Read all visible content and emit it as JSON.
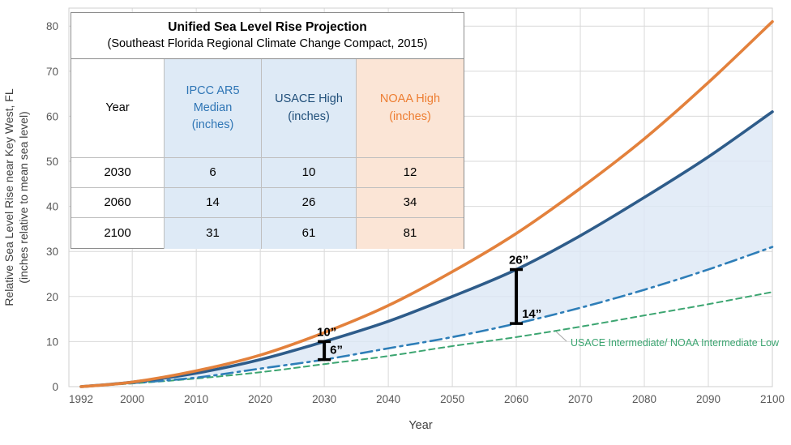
{
  "title_block": {
    "title": "Unified Sea Level Rise Projection",
    "subtitle": "(Southeast Florida Regional Climate Change Compact, 2015)"
  },
  "table": {
    "columns": [
      {
        "label": "Year",
        "color": "#000000",
        "bg": "#FFFFFF"
      },
      {
        "label": "IPCC AR5\nMedian\n(inches)",
        "color": "#2E75B5",
        "bg": "#DEEAF6"
      },
      {
        "label": "USACE High\n(inches)",
        "color": "#1F4E79",
        "bg": "#DEEAF6"
      },
      {
        "label": "NOAA High\n(inches)",
        "color": "#ED7D31",
        "bg": "#FBE5D6"
      }
    ],
    "rows": [
      {
        "year": "2030",
        "ipcc": "6",
        "usace": "10",
        "noaa": "12"
      },
      {
        "year": "2060",
        "ipcc": "14",
        "usace": "26",
        "noaa": "34"
      },
      {
        "year": "2100",
        "ipcc": "31",
        "usace": "61",
        "noaa": "81"
      }
    ]
  },
  "chart_data": {
    "type": "line",
    "x": [
      1992,
      2000,
      2010,
      2020,
      2030,
      2040,
      2050,
      2060,
      2070,
      2080,
      2090,
      2100
    ],
    "series": [
      {
        "name": "NOAA High",
        "color": "#E3813C",
        "style": "solid",
        "width": 3.6,
        "values": [
          0,
          1,
          3.5,
          7,
          12,
          18,
          25.5,
          34,
          44,
          55,
          67.5,
          81
        ]
      },
      {
        "name": "USACE High",
        "color": "#2E5C8A",
        "style": "solid",
        "width": 3.6,
        "values": [
          0,
          1,
          3,
          6,
          10,
          14.5,
          20,
          26,
          33.5,
          42,
          51,
          61
        ]
      },
      {
        "name": "IPCC AR5 Median",
        "color": "#2E7EB8",
        "style": "dashdot",
        "width": 2.6,
        "values": [
          0,
          0.8,
          2,
          4,
          6,
          8.5,
          11,
          14,
          17.5,
          21.5,
          26,
          31
        ]
      },
      {
        "name": "USACE Intermediate/ NOAA Intermediate Low",
        "color": "#3CA571",
        "style": "dashed",
        "width": 2,
        "values": [
          0,
          0.7,
          1.8,
          3.2,
          5,
          6.8,
          9,
          11,
          13.3,
          15.8,
          18.3,
          21
        ]
      }
    ],
    "fill_between": {
      "upper": 1,
      "lower": 2,
      "color": "#DCE7F5",
      "opacity": 0.8
    },
    "xlabel": "Year",
    "ylabel_line1": "Relative Sea Level Rise near Key West, FL",
    "ylabel_line2": "(inches relative to mean sea level)",
    "xlim": [
      1992,
      2100
    ],
    "ylim": [
      0,
      84
    ],
    "yticks": [
      0,
      10,
      20,
      30,
      40,
      50,
      60,
      70,
      80
    ],
    "xticks": [
      1992,
      2000,
      2010,
      2020,
      2030,
      2040,
      2050,
      2060,
      2070,
      2080,
      2090,
      2100
    ],
    "grid": true,
    "annotations": [
      {
        "x": 2030,
        "top": 10,
        "bottom": 6,
        "top_label": "10”",
        "bottom_label": "6”"
      },
      {
        "x": 2060,
        "top": 26,
        "bottom": 14,
        "top_label": "26”",
        "bottom_label": "14”"
      }
    ],
    "series_label": {
      "text": "USACE Intermediate/ NOAA Intermediate Low",
      "color": "#3CA571"
    },
    "axis_text_color": "#595959",
    "axis_title_color": "#404040",
    "gridline_color": "#D9D9D9",
    "plot_border_color": "#CFCFCF",
    "annotation_color": "#000000"
  }
}
